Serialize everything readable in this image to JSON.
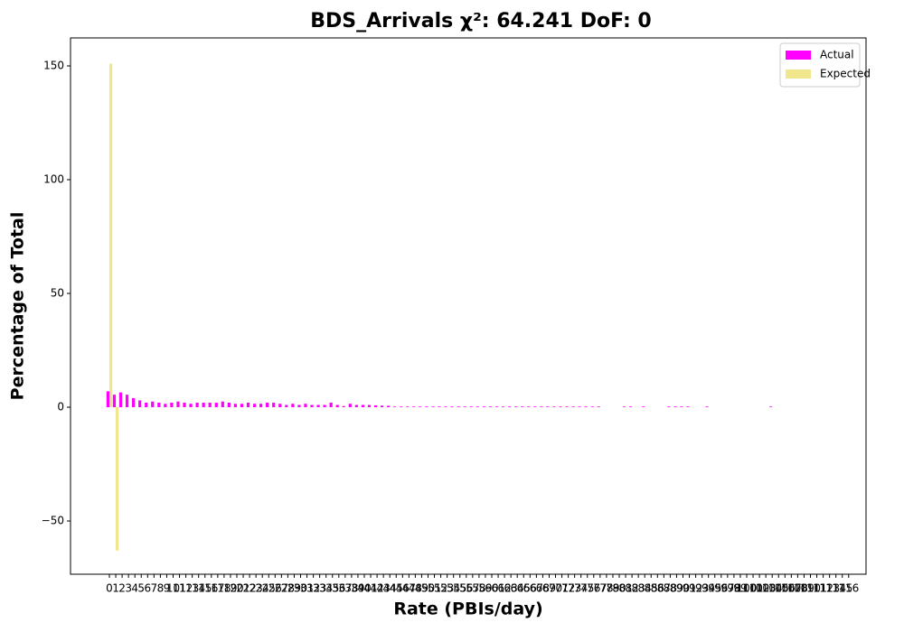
{
  "chart_data": {
    "type": "bar",
    "title": "BDS_Arrivals χ²: 64.241 DoF: 0",
    "xlabel": "Rate (PBIs/day)",
    "ylabel": "Percentage of Total",
    "categories": [
      "0",
      "1",
      "2",
      "3",
      "4",
      "5",
      "6",
      "7",
      "8",
      "9",
      "10",
      "11",
      "12",
      "13",
      "14",
      "15",
      "16",
      "17",
      "18",
      "19",
      "20",
      "21",
      "22",
      "23",
      "24",
      "25",
      "26",
      "27",
      "28",
      "29",
      "30",
      "31",
      "32",
      "33",
      "34",
      "35",
      "36",
      "37",
      "38",
      "39",
      "40",
      "41",
      "42",
      "43",
      "44",
      "45",
      "46",
      "47",
      "48",
      "49",
      "50",
      "51",
      "52",
      "53",
      "54",
      "55",
      "56",
      "57",
      "58",
      "59",
      "60",
      "61",
      "62",
      "63",
      "64",
      "65",
      "66",
      "67",
      "68",
      "69",
      "70",
      "71",
      "72",
      "73",
      "74",
      "75",
      "76",
      "77",
      "78",
      "79",
      "80",
      "81",
      "82",
      "83",
      "84",
      "85",
      "86",
      "87",
      "88",
      "89",
      "90",
      "91",
      "92",
      "93",
      "94",
      "95",
      "96",
      "97",
      "98",
      "99",
      "100",
      "101",
      "102",
      "103",
      "104",
      "105",
      "106",
      "107",
      "108",
      "109",
      "110",
      "111",
      "112",
      "113",
      "114",
      "115",
      "116"
    ],
    "series": [
      {
        "name": "Actual",
        "color": "#ff00ff",
        "values": [
          7,
          5.5,
          6.5,
          5.5,
          4,
          3,
          2,
          2.5,
          2,
          1.5,
          2,
          2.5,
          2,
          1.5,
          2,
          2,
          2,
          2,
          2.5,
          2,
          1.5,
          1.5,
          2,
          1.5,
          1.5,
          2,
          2,
          1.5,
          1,
          1.5,
          1,
          1.5,
          1,
          1,
          1,
          2,
          1,
          0.5,
          1.5,
          1,
          1,
          1,
          0.8,
          0.7,
          0.6,
          0.3,
          0.3,
          0.3,
          0.3,
          0.3,
          0.3,
          0.3,
          0.3,
          0.3,
          0.3,
          0.3,
          0.3,
          0.3,
          0.3,
          0.3,
          0.3,
          0.3,
          0.3,
          0.3,
          0.3,
          0.3,
          0.3,
          0.3,
          0.3,
          0.3,
          0.3,
          0.3,
          0.3,
          0.3,
          0.3,
          0.3,
          0.3,
          0.3,
          0,
          0,
          0,
          0.3,
          0.3,
          0,
          0.3,
          0,
          0,
          0,
          0.3,
          0.3,
          0.3,
          0.3,
          0,
          0,
          0.3,
          0,
          0,
          0,
          0,
          0,
          0,
          0,
          0,
          0,
          0.3,
          0,
          0,
          0,
          0,
          0,
          0,
          0,
          0,
          0,
          0,
          0,
          0
        ]
      },
      {
        "name": "Expected",
        "color": "#f0e68c",
        "values": [
          151,
          -63,
          0,
          0,
          0,
          0,
          0,
          0,
          0,
          0,
          0,
          0,
          0,
          0,
          0,
          0,
          0,
          0,
          0,
          0,
          0,
          0,
          0,
          0,
          0,
          0,
          0,
          0,
          0,
          0,
          0,
          0,
          0,
          0,
          0,
          0,
          0,
          0,
          0,
          0,
          0,
          0,
          0,
          0,
          0,
          0,
          0,
          0,
          0,
          0,
          0,
          0,
          0,
          0,
          0,
          0,
          0,
          0,
          0,
          0,
          0,
          0,
          0,
          0,
          0,
          0,
          0,
          0,
          0,
          0,
          0,
          0,
          0,
          0,
          0,
          0,
          0,
          0,
          0,
          0,
          0,
          0,
          0,
          0,
          0,
          0,
          0,
          0,
          0,
          0,
          0,
          0,
          0,
          0,
          0,
          0,
          0,
          0,
          0,
          0,
          0,
          0,
          0,
          0,
          0,
          0,
          0,
          0,
          0,
          0,
          0,
          0,
          0,
          0,
          0,
          0,
          0
        ]
      }
    ],
    "ylim": [
      -73.4,
      162.3
    ],
    "yticks": [
      {
        "value": -50,
        "label": "−50"
      },
      0,
      50,
      100,
      150
    ],
    "legend": "upper right"
  }
}
